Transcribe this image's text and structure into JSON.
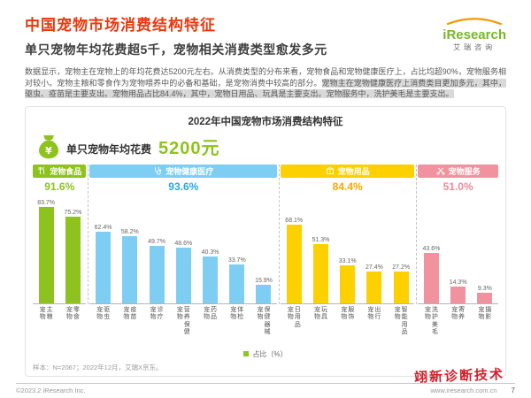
{
  "header": {
    "title": "中国宠物市场消费结构特征",
    "subtitle": "单只宠物年均花费超5千，宠物相关消费类型愈发多元",
    "logo_brand": "iResearch",
    "logo_cn": "艾瑞咨询"
  },
  "intro": {
    "normal": "数据显示，宠物主在宠物上的年均花费达5200元左右。从消费类型的分布来看，宠物食品和宠物健康医疗上，占比均超90%，宠物服务相对较小。宠物主粮和零食作为宠物喂养中的必备和基础，是宠物消费中较高的部分。",
    "highlight": "宠物主在宠物健康医疗上消费类目更加多元，其中，驱虫、疫苗是主要支出。宠物用品占比84.4%，其中，宠物日用品、玩具是主要支出。宠物服务中，洗护美毛是主要支出。"
  },
  "chart_header": {
    "title": "2022年中国宠物市场消费结构特征",
    "spend_label": "单只宠物年均花费",
    "spend_value": "5200元"
  },
  "chart_data": {
    "type": "bar",
    "title": "2022年中国宠物市场消费结构特征",
    "categories": [
      "宠物\n主粮",
      "宠物\n零食",
      "宠物\n驱虫",
      "宠物\n疫苗",
      "宠物\n诊疗",
      "宠物\n营养保健",
      "宠物\n药品",
      "宠物\n体检",
      "宠物\n保健器械",
      "宠物\n日用品",
      "宠物\n玩具",
      "宠物\n服饰",
      "宠物\n出行",
      "宠物\n智能用品",
      "宠物\n洗护美毛",
      "宠物\n寄养",
      "宠物\n摄影"
    ],
    "values": [
      83.7,
      75.2,
      62.4,
      58.2,
      49.7,
      48.6,
      40.3,
      33.7,
      15.9,
      68.1,
      51.3,
      33.1,
      27.4,
      27.2,
      43.6,
      14.3,
      9.3
    ],
    "ylim": [
      0,
      100
    ],
    "grid": false,
    "annotation": "单只宠物年均花费5200元",
    "groups": [
      {
        "label": "宠物食品",
        "share": "91.6%",
        "bars": 2,
        "band_color": "#8ec31f",
        "text_color": "#8ec31f",
        "icon": "food-icon"
      },
      {
        "label": "宠物健康医疗",
        "share": "93.6%",
        "bars": 7,
        "band_color": "#7ecef4",
        "text_color": "#29a9e0",
        "icon": "medical-icon"
      },
      {
        "label": "宠物用品",
        "share": "84.4%",
        "bars": 5,
        "band_color": "#fdd000",
        "text_color": "#f6a800",
        "icon": "box-icon"
      },
      {
        "label": "宠物服务",
        "share": "51.0%",
        "bars": 3,
        "band_color": "#f0939f",
        "text_color": "#ee8a9b",
        "icon": "scissors-icon"
      }
    ]
  },
  "legend": {
    "label": "占比（%）",
    "color": "#8ec31f"
  },
  "note": "样本：N=2067；2022年12月，艾瑞X京东。",
  "footer": {
    "copyright": "©2023.2 iResearch Inc.",
    "url": "www.iresearch.com.cn",
    "page_num": "7",
    "watermark": "翊新诊断技术"
  }
}
